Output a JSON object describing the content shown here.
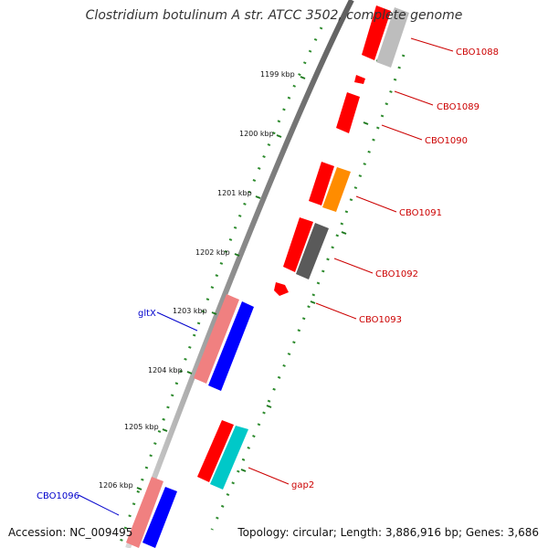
{
  "title": "Clostridium botulinum A str. ATCC 3502, complete genome",
  "accession": "Accession: NC_009495",
  "summary": "Topology: circular; Length: 3,886,916 bp; Genes: 3,686",
  "colors": {
    "red": "#ff0000",
    "pink": "#f08080",
    "blue": "#0000ff",
    "orange": "#ff8c00",
    "grey": "#5a5a5a",
    "silver": "#bdbdbd",
    "cyan": "#00c8c8",
    "tick": "#006400",
    "label_red": "#cc0000",
    "label_blue": "#0000cc"
  },
  "scale_ticks": [
    "1199 kbp",
    "1200 kbp",
    "1201 kbp",
    "1202 kbp",
    "1203 kbp",
    "1204 kbp",
    "1205 kbp",
    "1206 kbp"
  ],
  "gene_labels": [
    {
      "text": "CBO1088",
      "color": "red"
    },
    {
      "text": "CBO1089",
      "color": "red"
    },
    {
      "text": "CBO1090",
      "color": "red"
    },
    {
      "text": "CBO1091",
      "color": "red"
    },
    {
      "text": "CBO1092",
      "color": "red"
    },
    {
      "text": "CBO1093",
      "color": "red"
    },
    {
      "text": "gltX",
      "color": "blue"
    },
    {
      "text": "gap2",
      "color": "red"
    },
    {
      "text": "CBO1096",
      "color": "blue"
    }
  ]
}
